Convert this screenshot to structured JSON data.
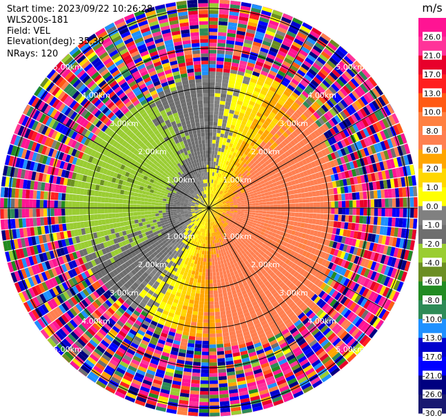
{
  "header": {
    "start_time": "Start time: 2023/09/22 10:26:28",
    "instrument": "WLS200s-181",
    "field": "Field: VEL",
    "elevation": "Elevation(deg): 35.30",
    "nrays": "NRays: 120"
  },
  "chart_data": {
    "type": "heatmap",
    "projection": "polar-ppi",
    "field": "VEL",
    "n_rays": 120,
    "range_rings_km": [
      1.0,
      2.0,
      3.0,
      4.0,
      5.0
    ],
    "ring_labels": [
      "1.00km",
      "2.00km",
      "3.00km",
      "4.00km",
      "5.00km"
    ],
    "max_range_km": 5.6,
    "colorbar": {
      "unit": "m/s",
      "vmin": -30.0,
      "vmax": 30.0,
      "ticks": [
        26.0,
        21.0,
        17.0,
        13.0,
        10.0,
        8.0,
        6.0,
        2.0,
        1.0,
        0.0,
        -1.0,
        -2.0,
        -4.0,
        -6.0,
        -8.0,
        -10.0,
        -13.0,
        -17.0,
        -21.0,
        -26.0,
        -30.0
      ],
      "tick_labels": [
        "26.0",
        "21.0",
        "17.0",
        "13.0",
        "10.0",
        "8.0",
        "6.0",
        "2.0",
        "1.0",
        "0.0",
        "-1.0",
        "-2.0",
        "-4.0",
        "-6.0",
        "-8.0",
        "-10.0",
        "-13.0",
        "-17.0",
        "-21.0",
        "-26.0",
        "-30.0"
      ],
      "colors": [
        "#ff1493",
        "#ff3399",
        "#e8002b",
        "#ff2020",
        "#ff5a14",
        "#ff8040",
        "#ff7f50",
        "#ffa500",
        "#ffd700",
        "#ffff00",
        "#808080",
        "#6e6e6e",
        "#9acd32",
        "#6b8e23",
        "#228b22",
        "#2e8b57",
        "#1e90ff",
        "#0000cd",
        "#0000ff",
        "#000080",
        "#191970"
      ]
    }
  }
}
